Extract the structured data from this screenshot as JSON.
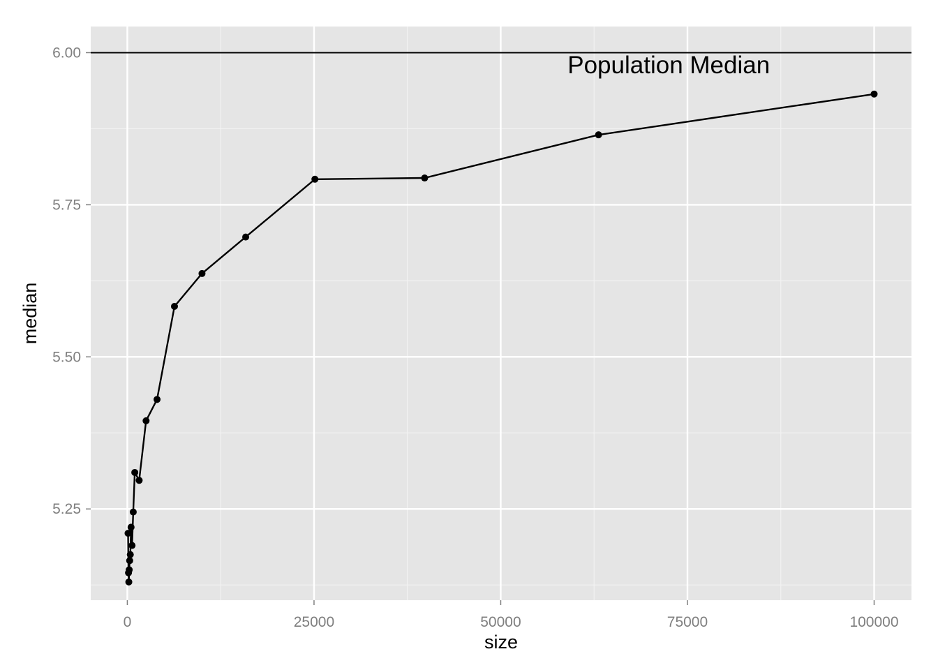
{
  "chart_data": {
    "type": "line",
    "title": "",
    "xlabel": "size",
    "ylabel": "median",
    "xlim": [
      -4900,
      105000
    ],
    "ylim": [
      5.1,
      6.043
    ],
    "x_ticks": [
      0,
      25000,
      50000,
      75000,
      100000
    ],
    "x_tick_labels": [
      "0",
      "25000",
      "50000",
      "75000",
      "100000"
    ],
    "y_ticks": [
      5.25,
      5.5,
      5.75,
      6.0
    ],
    "y_tick_labels": [
      "5.25",
      "5.50",
      "5.75",
      "6.00"
    ],
    "grid": true,
    "reference_line": {
      "y": 6.0
    },
    "annotation": {
      "text": "Population Median",
      "x": 72500,
      "y": 5.98
    },
    "series": [
      {
        "x": [
          100,
          158,
          200,
          251,
          316,
          398,
          501,
          631,
          794,
          1000,
          1585,
          2512,
          3981,
          6310,
          10000,
          15849,
          25119,
          39811,
          63096,
          100000
        ],
        "y": [
          5.21,
          5.145,
          5.13,
          5.15,
          5.165,
          5.175,
          5.22,
          5.19,
          5.245,
          5.31,
          5.297,
          5.395,
          5.43,
          5.583,
          5.637,
          5.697,
          5.792,
          5.794,
          5.865,
          5.932
        ]
      }
    ]
  }
}
